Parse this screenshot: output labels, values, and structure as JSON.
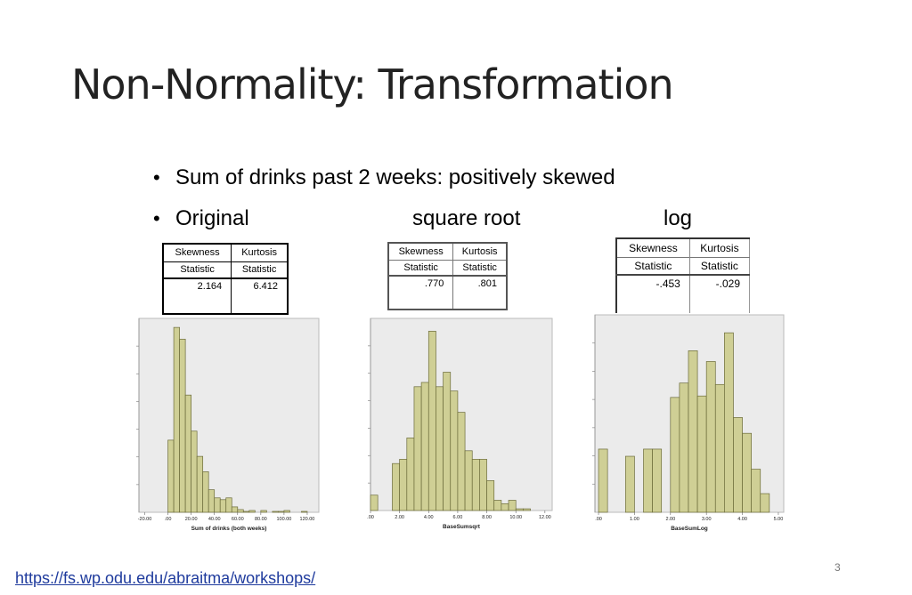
{
  "slide": {
    "title": "Non-Normality: Transformation",
    "bullets": [
      {
        "text": "Sum of drinks past 2 weeks: positively skewed"
      },
      {
        "text": "Original",
        "col2": "square root",
        "col3": "log"
      }
    ],
    "url": "https://fs.wp.odu.edu/abraitma/workshops/",
    "page_number": "3"
  },
  "tables": [
    {
      "headers": [
        "Skewness",
        "Kurtosis"
      ],
      "sub": [
        "Statistic",
        "Statistic"
      ],
      "values": [
        "2.164",
        "6.412"
      ]
    },
    {
      "headers": [
        "Skewness",
        "Kurtosis"
      ],
      "sub": [
        "Statistic",
        "Statistic"
      ],
      "values": [
        ".770",
        ".801"
      ]
    },
    {
      "headers": [
        "Skewness",
        "Kurtosis"
      ],
      "sub": [
        "Statistic",
        "Statistic"
      ],
      "values": [
        "-.453",
        "-.029"
      ]
    }
  ],
  "colors": {
    "bar": "#cfcf95",
    "bar_stroke": "#6b6b3a",
    "plot_bg": "#ebebeb"
  },
  "chart_data": [
    {
      "type": "bar",
      "xlabel": "Sum of drinks (both weeks)",
      "ticks": [
        "-20.00",
        ".00",
        "20.00",
        "40.00",
        "60.00",
        "80.00",
        "100.00",
        "120.00"
      ],
      "xlim": [
        -25,
        130
      ],
      "bin_width": 5,
      "bin_starts": [
        0,
        5,
        10,
        15,
        20,
        25,
        30,
        35,
        40,
        45,
        50,
        55,
        60,
        65,
        70,
        75,
        80,
        85,
        90,
        95,
        100,
        105,
        110,
        115
      ],
      "values": [
        80,
        205,
        192,
        130,
        90,
        62,
        45,
        25,
        16,
        14,
        16,
        6,
        3,
        1,
        2,
        0,
        2,
        0,
        1,
        1,
        2,
        0,
        0,
        1
      ],
      "ylim": [
        0,
        215
      ]
    },
    {
      "type": "bar",
      "xlabel": "BaseSumsqrt",
      "ticks": [
        ".00",
        "2.00",
        "4.00",
        "6.00",
        "8.00",
        "10.00",
        "12.00"
      ],
      "xlim": [
        0,
        12.5
      ],
      "bin_width": 0.5,
      "bin_starts": [
        0,
        0.5,
        1,
        1.5,
        2,
        2.5,
        3,
        3.5,
        4,
        4.5,
        5,
        5.5,
        6,
        6.5,
        7,
        7.5,
        8,
        8.5,
        9,
        9.5,
        10,
        10.5
      ],
      "values": [
        18,
        0,
        0,
        55,
        60,
        85,
        145,
        150,
        210,
        145,
        162,
        140,
        115,
        70,
        60,
        60,
        35,
        12,
        8,
        12,
        2,
        2
      ],
      "ylim": [
        0,
        225
      ]
    },
    {
      "type": "bar",
      "xlabel": "BaseSumLog",
      "ticks": [
        ".00",
        "1.00",
        "2.00",
        "3.00",
        "4.00",
        "5.00"
      ],
      "xlim": [
        -0.1,
        5.15
      ],
      "bin_width": 0.25,
      "bin_starts": [
        0,
        0.25,
        0.5,
        0.75,
        1,
        1.25,
        1.5,
        1.75,
        2,
        2.25,
        2.5,
        2.75,
        3,
        3.25,
        3.5,
        3.75,
        4,
        4.25,
        4.5
      ],
      "values": [
        88,
        0,
        0,
        78,
        0,
        88,
        88,
        0,
        160,
        180,
        225,
        162,
        210,
        178,
        250,
        132,
        110,
        60,
        26
      ],
      "ylim": [
        0,
        275
      ]
    }
  ]
}
